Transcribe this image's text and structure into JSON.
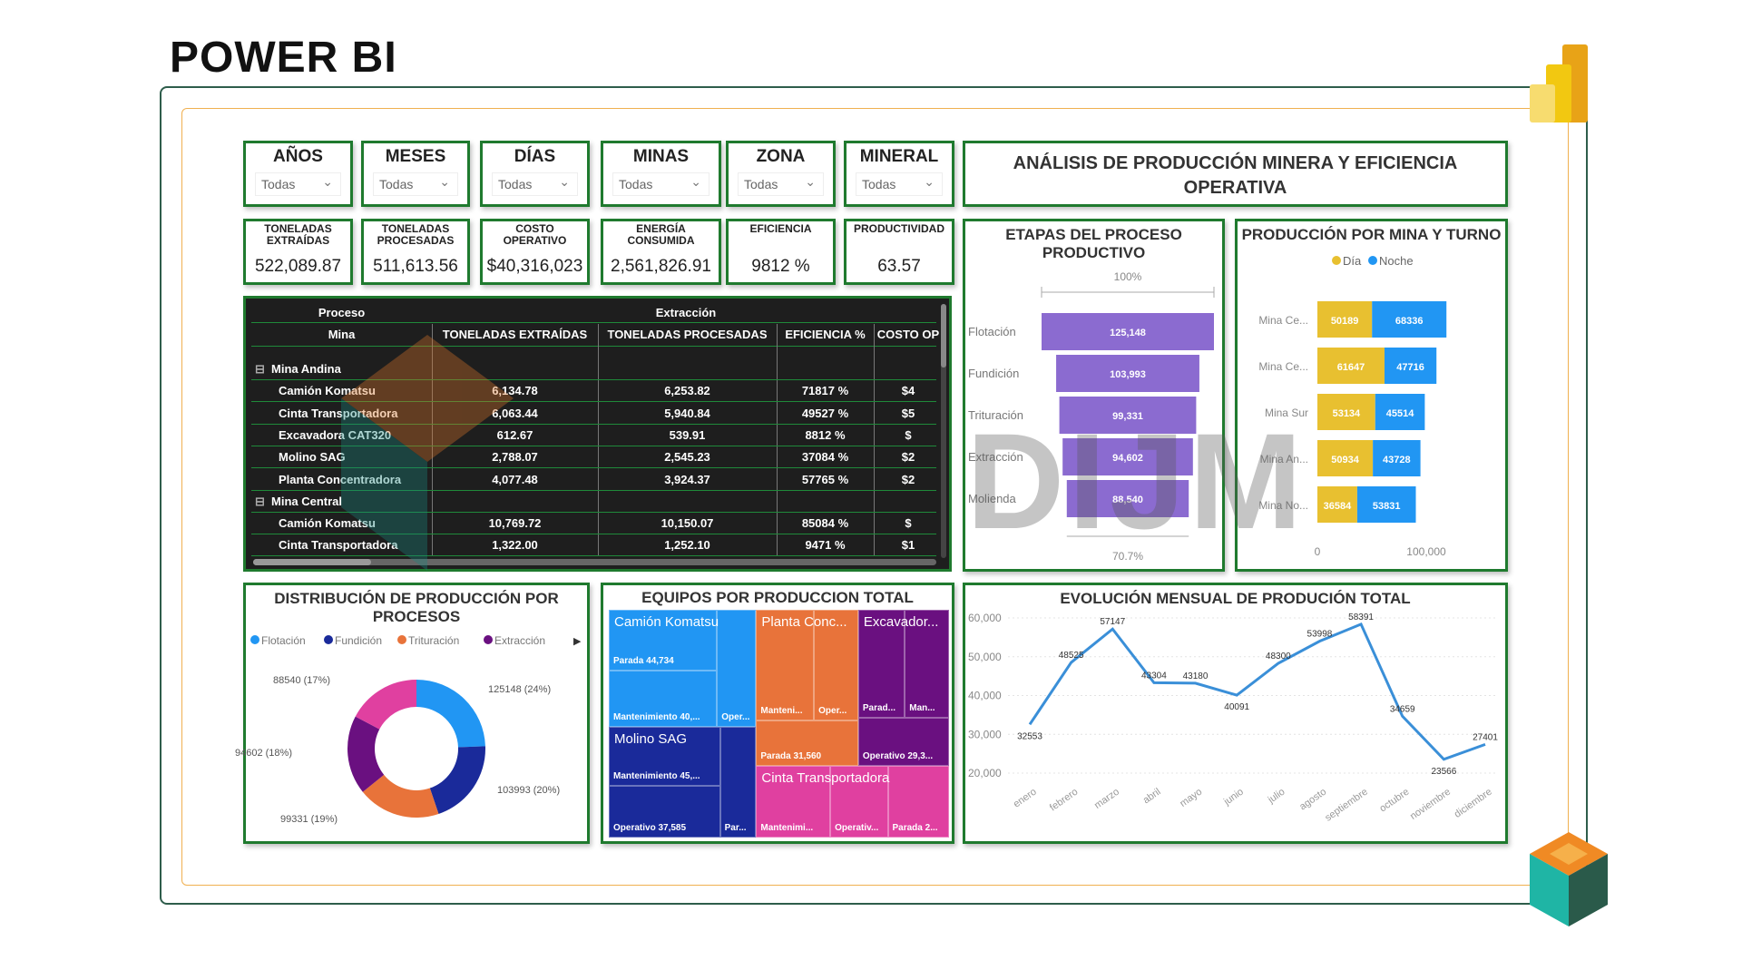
{
  "header": {
    "title": "POWER BI"
  },
  "watermark": {
    "text": "DIJM"
  },
  "filters": [
    {
      "label": "AÑOS",
      "value": "Todas"
    },
    {
      "label": "MESES",
      "value": "Todas"
    },
    {
      "label": "DÍAS",
      "value": "Todas"
    },
    {
      "label": "MINAS",
      "value": "Todas"
    },
    {
      "label": "ZONA",
      "value": "Todas"
    },
    {
      "label": "MINERAL",
      "value": "Todas"
    }
  ],
  "dashboard_title": "ANÁLISIS DE PRODUCCIÓN MINERA Y EFICIENCIA OPERATIVA",
  "kpis": [
    {
      "label": "TONELADAS EXTRAÍDAS",
      "value": "522,089.87"
    },
    {
      "label": "TONELADAS PROCESADAS",
      "value": "511,613.56"
    },
    {
      "label": "COSTO OPERATIVO",
      "value": "$40,316,023"
    },
    {
      "label": "ENERGÍA CONSUMIDA",
      "value": "2,561,826.91"
    },
    {
      "label": "EFICIENCIA",
      "value": "9812 %"
    },
    {
      "label": "PRODUCTIVIDAD",
      "value": "63.57"
    }
  ],
  "matrix": {
    "row_header_1": "Proceso",
    "row_header_2": "Mina",
    "group_header": "Extracción",
    "columns": [
      "TONELADAS EXTRAÍDAS",
      "TONELADAS PROCESADAS",
      "EFICIENCIA %",
      "COSTO OP"
    ],
    "rows": [
      {
        "type": "group",
        "name": "Mina Andina",
        "cells": [
          "",
          "",
          "",
          ""
        ]
      },
      {
        "type": "item",
        "name": "Camión Komatsu",
        "cells": [
          "6,134.78",
          "6,253.82",
          "71817 %",
          "$4"
        ]
      },
      {
        "type": "item",
        "name": "Cinta Transportadora",
        "cells": [
          "6,063.44",
          "5,940.84",
          "49527 %",
          "$5"
        ]
      },
      {
        "type": "item",
        "name": "Excavadora CAT320",
        "cells": [
          "612.67",
          "539.91",
          "8812 %",
          "$"
        ]
      },
      {
        "type": "item",
        "name": "Molino SAG",
        "cells": [
          "2,788.07",
          "2,545.23",
          "37084 %",
          "$2"
        ]
      },
      {
        "type": "item",
        "name": "Planta Concentradora",
        "cells": [
          "4,077.48",
          "3,924.37",
          "57765 %",
          "$2"
        ]
      },
      {
        "type": "group",
        "name": "Mina Central",
        "cells": [
          "",
          "",
          "",
          ""
        ]
      },
      {
        "type": "item",
        "name": "Camión Komatsu",
        "cells": [
          "10,769.72",
          "10,150.07",
          "85084 %",
          "$"
        ]
      },
      {
        "type": "item",
        "name": "Cinta Transportadora",
        "cells": [
          "1,322.00",
          "1,252.10",
          "9471 %",
          "$1"
        ]
      }
    ]
  },
  "chart_data": [
    {
      "type": "funnel",
      "title": "ETAPAS DEL PROCESO PRODUCTIVO",
      "categories": [
        "Flotación",
        "Fundición",
        "Trituración",
        "Extracción",
        "Molienda"
      ],
      "values": [
        125148,
        103993,
        99331,
        94602,
        88540
      ],
      "value_labels": [
        "125,148",
        "103,993",
        "99,331",
        "94,602",
        "88,540"
      ],
      "top_label": "100%",
      "bottom_label": "70.7%",
      "color": "#8b6bd0"
    },
    {
      "type": "bar",
      "orientation": "horizontal",
      "stacked": true,
      "title": "PRODUCCIÓN POR MINA Y TURNO",
      "categories": [
        "Mina Ce...",
        "Mina Ce...",
        "Mina Sur",
        "Mina An...",
        "Mina No..."
      ],
      "series": [
        {
          "name": "Día",
          "color": "#e8c030",
          "values": [
            50189,
            61647,
            53134,
            50934,
            36584
          ]
        },
        {
          "name": "Noche",
          "color": "#2196f3",
          "values": [
            68336,
            47716,
            45514,
            43728,
            53831
          ]
        }
      ],
      "xticks": [
        "0",
        "100,000"
      ],
      "xtick_values": [
        0,
        100000
      ],
      "legend": "top"
    },
    {
      "type": "pie",
      "donut": true,
      "title": "DISTRIBUCIÓN DE PRODUCCIÓN POR PROCESOS",
      "categories": [
        "Flotación",
        "Fundición",
        "Trituración",
        "Extracción",
        "Molienda"
      ],
      "values": [
        125148,
        103993,
        99331,
        94602,
        88540
      ],
      "labels": [
        "125148 (24%)",
        "103993 (20%)",
        "99331 (19%)",
        "94602 (18%)",
        "88540 (17%)"
      ],
      "colors": [
        "#2196f3",
        "#1a2a9a",
        "#e8733a",
        "#6a1080",
        "#e040a0"
      ],
      "legend_visible": [
        "Flotación",
        "Fundición",
        "Trituración",
        "Extracción"
      ],
      "legend": "top"
    },
    {
      "type": "treemap",
      "title": "EQUIPOS POR PRODUCCION TOTAL",
      "groups": [
        {
          "name": "Camión Komatsu",
          "color": "#2196f3",
          "children": [
            "Parada 44,734",
            "Mantenimiento 40,...",
            "Oper..."
          ]
        },
        {
          "name": "Molino SAG",
          "color": "#1a2a9a",
          "children": [
            "Mantenimiento 45,...",
            "Operativo 37,585",
            "Par..."
          ]
        },
        {
          "name": "Planta Conc...",
          "color": "#e8733a",
          "children": [
            "Manteni...",
            "Oper...",
            "Parada 31,560"
          ]
        },
        {
          "name": "Excavador...",
          "color": "#6a1080",
          "children": [
            "Parad...",
            "Man...",
            "Operativo 29,3..."
          ]
        },
        {
          "name": "Cinta Transportadora",
          "color": "#e040a0",
          "children": [
            "Mantenimi...",
            "Operativ...",
            "Parada 2..."
          ]
        }
      ]
    },
    {
      "type": "line",
      "title": "EVOLUCIÓN MENSUAL DE PRODUCIÓN TOTAL",
      "x": [
        "enero",
        "febrero",
        "marzo",
        "abril",
        "mayo",
        "junio",
        "julio",
        "agosto",
        "septiembre",
        "octubre",
        "noviembre",
        "diciembre"
      ],
      "values": [
        32553,
        48525,
        57147,
        43304,
        43180,
        40091,
        48300,
        53998,
        58391,
        34659,
        23566,
        27401
      ],
      "ylim": [
        20000,
        60000
      ],
      "yticks": [
        "60,000",
        "50,000",
        "40,000",
        "30,000",
        "20,000"
      ],
      "ytick_values": [
        60000,
        50000,
        40000,
        30000,
        20000
      ],
      "grid": true,
      "color": "#3a8fd8"
    }
  ]
}
